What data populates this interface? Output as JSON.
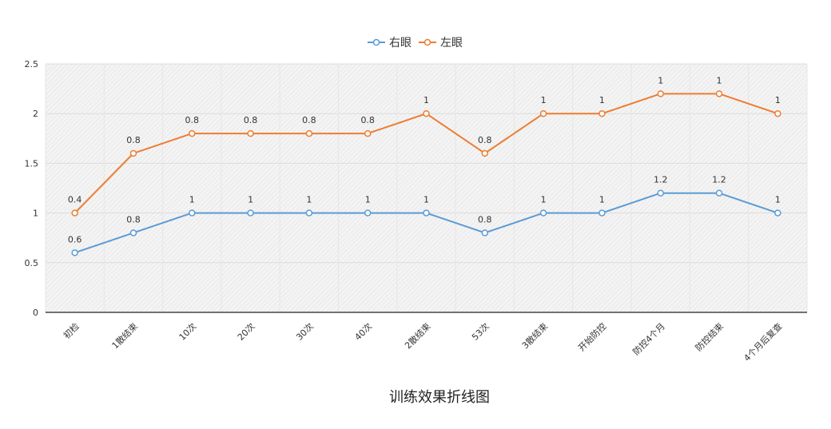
{
  "chart_data": {
    "type": "line",
    "title": "",
    "xlabel": "训练效果折线图",
    "ylabel": "",
    "categories": [
      "初检",
      "1散结束",
      "10次",
      "20次",
      "30次",
      "40次",
      "2散结束",
      "53次",
      "3散结束",
      "开始防控",
      "防控4个月",
      "防控结束",
      "4个月后复查"
    ],
    "series": [
      {
        "name": "右眼",
        "color": "#5b9bd5",
        "values": [
          0.6,
          0.8,
          1,
          1,
          1,
          1,
          1,
          0.8,
          1,
          1,
          1.2,
          1.2,
          1
        ],
        "labels": [
          "0.6",
          "0.8",
          "1",
          "1",
          "1",
          "1",
          "1",
          "0.8",
          "1",
          "1",
          "1.2",
          "1.2",
          "1"
        ]
      },
      {
        "name": "左眼",
        "color": "#ed7d31",
        "values": [
          1,
          1.6,
          1.8,
          1.8,
          1.8,
          1.8,
          2,
          1.6,
          2,
          2,
          2.2,
          2.2,
          2
        ],
        "labels": [
          "0.4",
          "0.8",
          "0.8",
          "0.8",
          "0.8",
          "0.8",
          "1",
          "0.8",
          "1",
          "1",
          "1",
          "1",
          "1"
        ]
      }
    ],
    "yticks": [
      "0",
      "0.5",
      "1",
      "1.5",
      "2",
      "2.5"
    ],
    "ylim": [
      0,
      2.5
    ],
    "grid": true,
    "legend_position": "top"
  }
}
